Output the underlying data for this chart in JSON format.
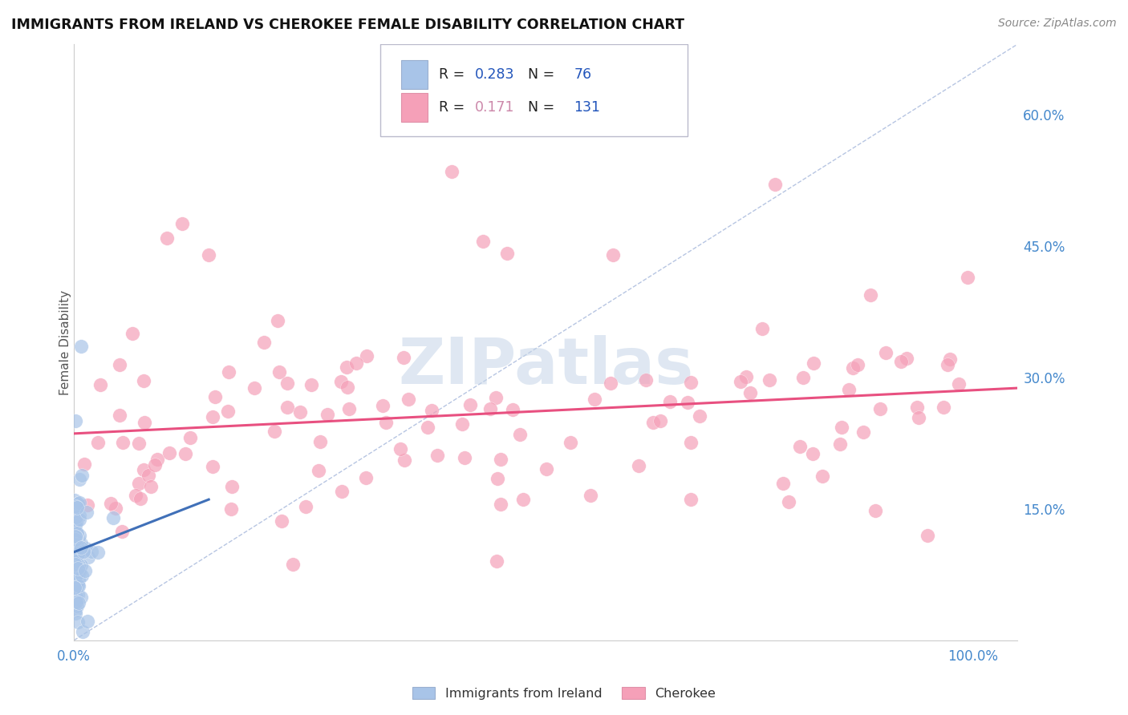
{
  "title": "IMMIGRANTS FROM IRELAND VS CHEROKEE FEMALE DISABILITY CORRELATION CHART",
  "source": "Source: ZipAtlas.com",
  "ylabel": "Female Disability",
  "right_yticks": [
    "60.0%",
    "45.0%",
    "30.0%",
    "15.0%"
  ],
  "right_ytick_vals": [
    0.6,
    0.45,
    0.3,
    0.15
  ],
  "ylim": [
    0.0,
    0.68
  ],
  "xlim": [
    0.0,
    1.05
  ],
  "ireland_R": "0.283",
  "ireland_N": "76",
  "cherokee_R": "0.171",
  "cherokee_N": "131",
  "ireland_color": "#a8c4e8",
  "cherokee_color": "#f5a0b8",
  "ireland_line_color": "#4070b8",
  "cherokee_line_color": "#e85080",
  "dashed_line_color": "#aabbdd",
  "background_color": "#ffffff",
  "grid_color": "#d8d8e8",
  "watermark": "ZIPatlas",
  "title_color": "#111111",
  "source_color": "#888888",
  "tick_color": "#4488cc",
  "label_color": "#555555"
}
